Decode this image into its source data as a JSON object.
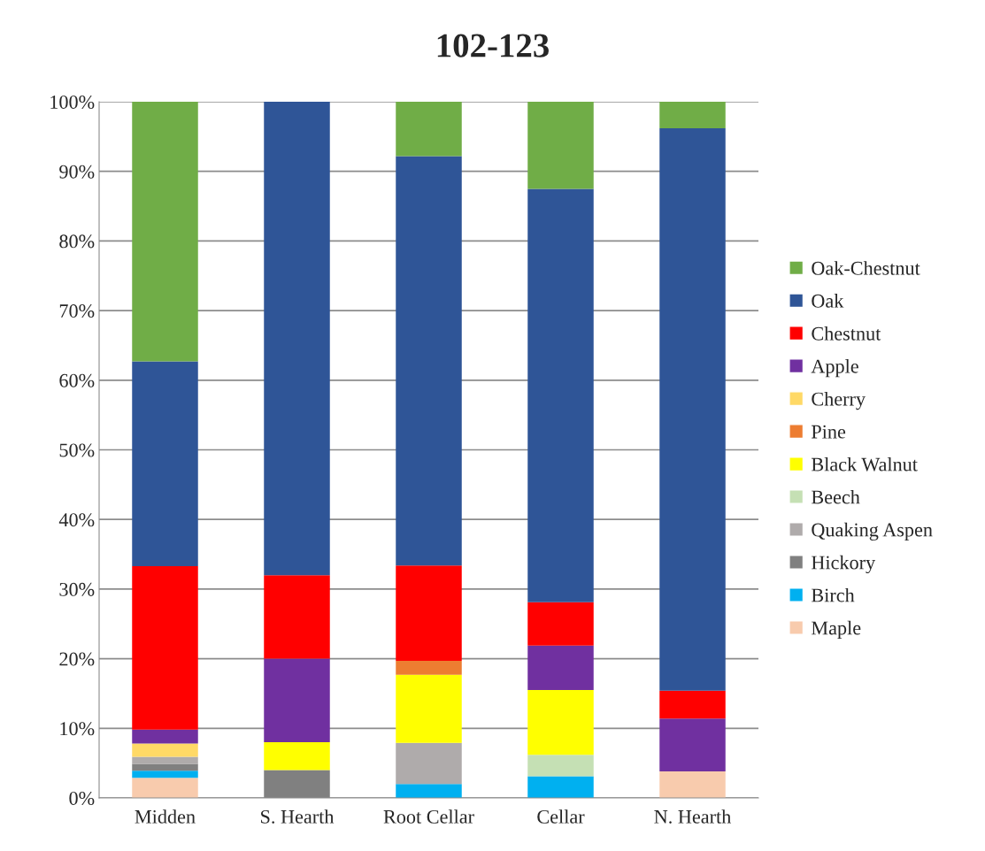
{
  "chart_data": {
    "type": "bar",
    "stacked": true,
    "title": "102-123",
    "categories": [
      "Midden",
      "S. Hearth",
      "Root Cellar",
      "Cellar",
      "N. Hearth"
    ],
    "series": [
      {
        "name": "Maple",
        "color": "#f8cbad",
        "values": [
          2.9,
          null,
          null,
          null,
          3.8
        ]
      },
      {
        "name": "Birch",
        "color": "#00b0f0",
        "values": [
          1.0,
          null,
          2.0,
          3.1,
          null
        ]
      },
      {
        "name": "Hickory",
        "color": "#808080",
        "values": [
          1.0,
          4.0,
          null,
          null,
          null
        ]
      },
      {
        "name": "Quaking Aspen",
        "color": "#afabab",
        "values": [
          1.0,
          null,
          5.9,
          null,
          null
        ]
      },
      {
        "name": "Beech",
        "color": "#c5e0b4",
        "values": [
          null,
          null,
          null,
          3.1,
          null
        ]
      },
      {
        "name": "Black Walnut",
        "color": "#ffff00",
        "values": [
          null,
          4.0,
          9.8,
          9.3,
          null
        ]
      },
      {
        "name": "Pine",
        "color": "#ed7d31",
        "values": [
          null,
          null,
          2.0,
          null,
          null
        ]
      },
      {
        "name": "Cherry",
        "color": "#ffd966",
        "values": [
          1.9,
          null,
          null,
          null,
          null
        ]
      },
      {
        "name": "Apple",
        "color": "#7030a0",
        "values": [
          2.0,
          12.0,
          null,
          6.4,
          7.6
        ]
      },
      {
        "name": "Chestnut",
        "color": "#ff0000",
        "values": [
          23.5,
          12.0,
          13.7,
          6.2,
          4.0
        ]
      },
      {
        "name": "Oak",
        "color": "#2f5597",
        "values": [
          29.4,
          68.0,
          58.8,
          59.4,
          80.8
        ]
      },
      {
        "name": "Oak-Chestnut",
        "color": "#70ad47",
        "values": [
          37.3,
          null,
          7.8,
          12.5,
          3.8
        ]
      }
    ],
    "ylim": [
      0,
      100
    ],
    "yticks": [
      {
        "value": 0,
        "label": "0%"
      },
      {
        "value": 10,
        "label": "10%"
      },
      {
        "value": 20,
        "label": "20%"
      },
      {
        "value": 30,
        "label": "30%"
      },
      {
        "value": 40,
        "label": "40%"
      },
      {
        "value": 50,
        "label": "50%"
      },
      {
        "value": 60,
        "label": "60%"
      },
      {
        "value": 70,
        "label": "70%"
      },
      {
        "value": 80,
        "label": "80%"
      },
      {
        "value": 90,
        "label": "90%"
      },
      {
        "value": 100,
        "label": "100%"
      }
    ],
    "grid": "y",
    "legend": "right"
  }
}
